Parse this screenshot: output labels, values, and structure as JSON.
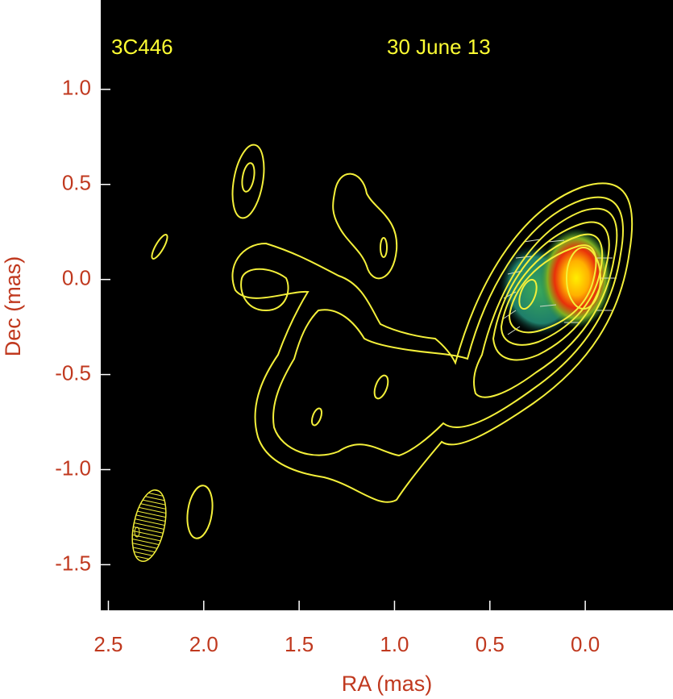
{
  "chart_data": {
    "type": "contour",
    "annotations": [
      "3C446",
      "30 June 13"
    ],
    "xlabel": "RA (mas)",
    "ylabel": "Dec (mas)",
    "xlim": [
      2.54,
      -0.46
    ],
    "ylim": [
      -1.74,
      1.47
    ],
    "xticks": [
      2.5,
      {
        "value": 2.0,
        "label": "2.0"
      },
      1.5,
      {
        "value": 1.0,
        "label": "1.0"
      },
      0.5,
      {
        "value": 0.0,
        "label": "0.0"
      }
    ],
    "yticks": [
      {
        "value": 1.0,
        "label": "1.0"
      },
      0.5,
      {
        "value": 0.0,
        "label": "0.0"
      },
      -0.5,
      {
        "value": -1.0,
        "label": "-1.0"
      },
      -1.5
    ],
    "label_color": "#c0391f",
    "annotation_color": "#ffff33",
    "contour_color": "#ffff33"
  }
}
